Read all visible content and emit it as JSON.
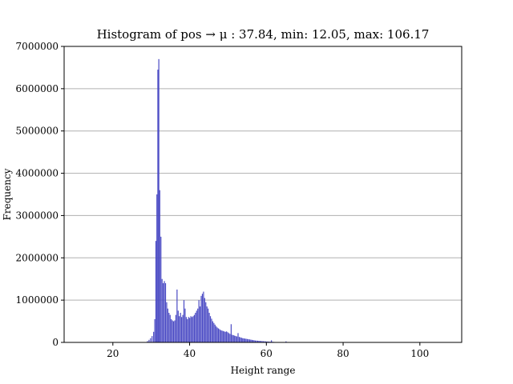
{
  "chart_data": {
    "type": "bar",
    "title": "Histogram of pos → μ : 37.84, min: 12.05, max: 106.17",
    "xlabel": "Height range",
    "ylabel": "Frequency",
    "xlim": [
      7.3,
      110.9
    ],
    "ylim": [
      0,
      7000000
    ],
    "xticks": [
      20,
      40,
      60,
      80,
      100
    ],
    "yticks": [
      0,
      1000000,
      2000000,
      3000000,
      4000000,
      5000000,
      6000000,
      7000000
    ],
    "grid": "horizontal",
    "bar_color": "#4b4bc4",
    "bin_width": 0.25,
    "bins": [
      [
        28.9,
        30000
      ],
      [
        29.3,
        60000
      ],
      [
        29.7,
        100000
      ],
      [
        30.1,
        150000
      ],
      [
        30.5,
        250000
      ],
      [
        30.8,
        550000
      ],
      [
        31.1,
        2400000
      ],
      [
        31.35,
        3500000
      ],
      [
        31.6,
        6450000
      ],
      [
        31.85,
        6700000
      ],
      [
        32.1,
        3600000
      ],
      [
        32.4,
        2500000
      ],
      [
        32.7,
        1500000
      ],
      [
        33.0,
        1400000
      ],
      [
        33.3,
        1450000
      ],
      [
        33.6,
        1400000
      ],
      [
        33.9,
        950000
      ],
      [
        34.2,
        800000
      ],
      [
        34.5,
        700000
      ],
      [
        34.8,
        650000
      ],
      [
        35.1,
        550000
      ],
      [
        35.4,
        520000
      ],
      [
        35.7,
        500000
      ],
      [
        36.0,
        520000
      ],
      [
        36.3,
        650000
      ],
      [
        36.6,
        1250000
      ],
      [
        36.9,
        750000
      ],
      [
        37.2,
        620000
      ],
      [
        37.5,
        700000
      ],
      [
        37.8,
        600000
      ],
      [
        38.1,
        650000
      ],
      [
        38.4,
        1000000
      ],
      [
        38.7,
        800000
      ],
      [
        39.0,
        600000
      ],
      [
        39.3,
        550000
      ],
      [
        39.6,
        600000
      ],
      [
        39.9,
        580000
      ],
      [
        40.2,
        620000
      ],
      [
        40.5,
        600000
      ],
      [
        40.8,
        620000
      ],
      [
        41.1,
        650000
      ],
      [
        41.4,
        700000
      ],
      [
        41.7,
        750000
      ],
      [
        42.0,
        800000
      ],
      [
        42.3,
        1000000
      ],
      [
        42.6,
        850000
      ],
      [
        42.9,
        1100000
      ],
      [
        43.2,
        1150000
      ],
      [
        43.5,
        1200000
      ],
      [
        43.8,
        1050000
      ],
      [
        44.1,
        950000
      ],
      [
        44.4,
        850000
      ],
      [
        44.7,
        800000
      ],
      [
        45.0,
        700000
      ],
      [
        45.3,
        620000
      ],
      [
        45.6,
        560000
      ],
      [
        45.9,
        500000
      ],
      [
        46.2,
        460000
      ],
      [
        46.5,
        420000
      ],
      [
        46.8,
        380000
      ],
      [
        47.1,
        350000
      ],
      [
        47.4,
        330000
      ],
      [
        47.7,
        310000
      ],
      [
        48.0,
        290000
      ],
      [
        48.3,
        280000
      ],
      [
        48.6,
        270000
      ],
      [
        48.9,
        260000
      ],
      [
        49.2,
        250000
      ],
      [
        49.5,
        260000
      ],
      [
        49.8,
        240000
      ],
      [
        50.1,
        220000
      ],
      [
        50.4,
        200000
      ],
      [
        50.7,
        430000
      ],
      [
        51.0,
        180000
      ],
      [
        51.3,
        170000
      ],
      [
        51.6,
        160000
      ],
      [
        51.9,
        150000
      ],
      [
        52.2,
        140000
      ],
      [
        52.5,
        220000
      ],
      [
        52.8,
        130000
      ],
      [
        53.1,
        120000
      ],
      [
        53.4,
        110000
      ],
      [
        53.7,
        100000
      ],
      [
        54.0,
        95000
      ],
      [
        54.3,
        90000
      ],
      [
        54.6,
        85000
      ],
      [
        54.9,
        80000
      ],
      [
        55.2,
        75000
      ],
      [
        55.5,
        70000
      ],
      [
        55.8,
        65000
      ],
      [
        56.1,
        60000
      ],
      [
        56.4,
        55000
      ],
      [
        56.7,
        50000
      ],
      [
        57.0,
        45000
      ],
      [
        57.3,
        42000
      ],
      [
        57.6,
        40000
      ],
      [
        57.9,
        38000
      ],
      [
        58.2,
        35000
      ],
      [
        58.5,
        33000
      ],
      [
        58.8,
        30000
      ],
      [
        59.1,
        28000
      ],
      [
        59.4,
        26000
      ],
      [
        59.7,
        24000
      ],
      [
        60.0,
        22000
      ],
      [
        60.3,
        20000
      ],
      [
        60.6,
        18000
      ],
      [
        60.9,
        16000
      ],
      [
        61.2,
        50000
      ],
      [
        61.5,
        14000
      ],
      [
        61.8,
        12000
      ],
      [
        62.1,
        10000
      ],
      [
        62.4,
        9000
      ],
      [
        62.7,
        8000
      ],
      [
        63.0,
        7000
      ],
      [
        63.3,
        6000
      ],
      [
        64.0,
        5000
      ],
      [
        65.0,
        25000
      ],
      [
        66.0,
        4000
      ],
      [
        67.0,
        3000
      ],
      [
        68.0,
        2500
      ],
      [
        69.0,
        2000
      ],
      [
        70.0,
        1500
      ],
      [
        72.0,
        1000
      ],
      [
        75.0,
        800
      ],
      [
        78.0,
        600
      ]
    ]
  }
}
